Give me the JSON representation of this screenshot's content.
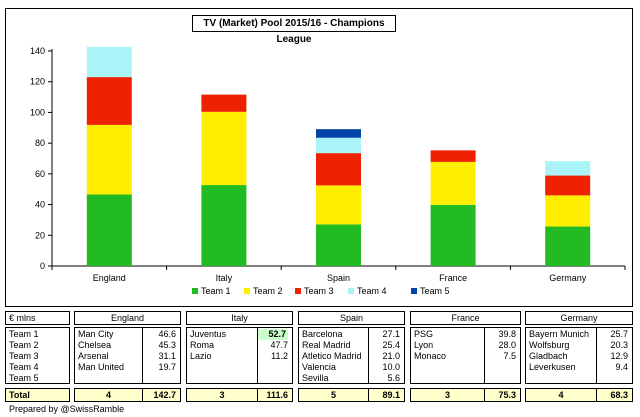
{
  "chart_data": {
    "type": "bar",
    "stacked": true,
    "title": "TV (Market) Pool 2015/16 - Champions League",
    "categories": [
      "England",
      "Italy",
      "Spain",
      "France",
      "Germany"
    ],
    "ylim": [
      0,
      140
    ],
    "yticks": [
      0,
      20,
      40,
      60,
      80,
      100,
      120,
      140
    ],
    "grid": false,
    "legend_position": "bottom",
    "series": [
      {
        "name": "Team 1",
        "color": "#22bb22",
        "values": [
          46.6,
          52.7,
          27.1,
          39.8,
          25.7
        ]
      },
      {
        "name": "Team 2",
        "color": "#ffee00",
        "values": [
          45.3,
          47.7,
          25.4,
          28.0,
          20.3
        ]
      },
      {
        "name": "Team 3",
        "color": "#ee2200",
        "values": [
          31.1,
          11.2,
          21.0,
          7.5,
          12.9
        ]
      },
      {
        "name": "Team 4",
        "color": "#aaf4f8",
        "values": [
          19.7,
          0,
          10.0,
          0,
          9.4
        ]
      },
      {
        "name": "Team 5",
        "color": "#0044aa",
        "values": [
          0,
          0,
          5.6,
          0,
          0
        ]
      }
    ]
  },
  "table": {
    "unit_label": "€ mlns",
    "total_label": "Total",
    "team_labels": [
      "Team 1",
      "Team 2",
      "Team 3",
      "Team 4",
      "Team 5"
    ],
    "countries": [
      {
        "name": "England",
        "count": "4",
        "total": "142.7",
        "clubs": [
          {
            "name": "Man City",
            "value": "46.6"
          },
          {
            "name": "Chelsea",
            "value": "45.3"
          },
          {
            "name": "Arsenal",
            "value": "31.1"
          },
          {
            "name": "Man United",
            "value": "19.7"
          }
        ]
      },
      {
        "name": "Italy",
        "count": "3",
        "total": "111.6",
        "clubs": [
          {
            "name": "Juventus",
            "value": "52.7",
            "highlight": true
          },
          {
            "name": "Roma",
            "value": "47.7"
          },
          {
            "name": "Lazio",
            "value": "11.2"
          }
        ]
      },
      {
        "name": "Spain",
        "count": "5",
        "total": "89.1",
        "clubs": [
          {
            "name": "Barcelona",
            "value": "27.1"
          },
          {
            "name": "Real Madrid",
            "value": "25.4"
          },
          {
            "name": "Atletico Madrid",
            "value": "21.0"
          },
          {
            "name": "Valencia",
            "value": "10.0"
          },
          {
            "name": "Sevilla",
            "value": "5.6"
          }
        ]
      },
      {
        "name": "France",
        "count": "3",
        "total": "75.3",
        "clubs": [
          {
            "name": "PSG",
            "value": "39.8"
          },
          {
            "name": "Lyon",
            "value": "28.0"
          },
          {
            "name": "Monaco",
            "value": "7.5"
          }
        ]
      },
      {
        "name": "Germany",
        "count": "4",
        "total": "68.3",
        "clubs": [
          {
            "name": "Bayern Munich",
            "value": "25.7"
          },
          {
            "name": "Wolfsburg",
            "value": "20.3"
          },
          {
            "name": "Gladbach",
            "value": "12.9"
          },
          {
            "name": "Leverkusen",
            "value": "9.4"
          }
        ]
      }
    ],
    "highlight_color": "#ccffcc"
  },
  "footer": {
    "credit": "Prepared by @SwissRamble"
  }
}
